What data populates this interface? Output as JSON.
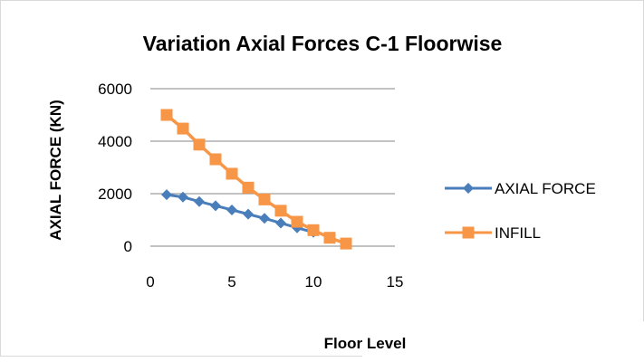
{
  "chart_data": {
    "type": "line",
    "title": "Variation Axial Forces  C-1 Floorwise",
    "xlabel": "Floor Level",
    "ylabel": "AXIAL FORCE (KN)",
    "xlim": [
      0,
      15
    ],
    "ylim": [
      0,
      6000
    ],
    "xticks": [
      0,
      5,
      10,
      15
    ],
    "yticks": [
      0,
      2000,
      4000,
      6000
    ],
    "grid": "horizontal",
    "legend_position": "right",
    "series": [
      {
        "name": "AXIAL FORCE",
        "color": "#4a7ebb",
        "marker": "diamond",
        "x": [
          1,
          2,
          3,
          4,
          5,
          6,
          7,
          8,
          9,
          10
        ],
        "y": [
          1960,
          1870,
          1700,
          1540,
          1380,
          1220,
          1060,
          880,
          700,
          530
        ]
      },
      {
        "name": "INFILL",
        "color": "#f79646",
        "marker": "square",
        "x": [
          1,
          2,
          3,
          4,
          5,
          6,
          7,
          8,
          9,
          10,
          11,
          12
        ],
        "y": [
          5000,
          4480,
          3870,
          3310,
          2760,
          2230,
          1780,
          1350,
          930,
          610,
          320,
          100
        ]
      }
    ]
  }
}
